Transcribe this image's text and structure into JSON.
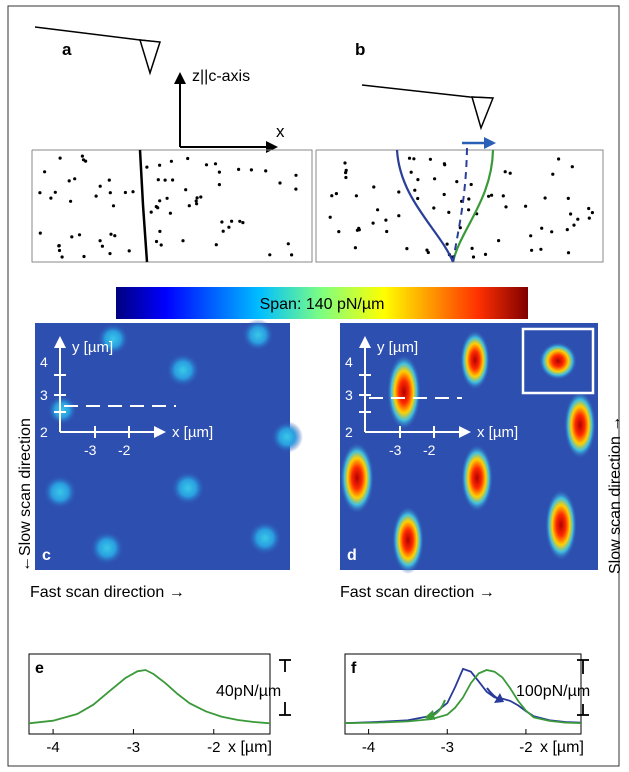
{
  "panels": {
    "a": {
      "label": "a",
      "axis_z": "z||c-axis",
      "axis_x": "x"
    },
    "b": {
      "label": "b"
    },
    "c": {
      "label": "c",
      "ylabel": "y [µm]",
      "xlabel": "x [µm]",
      "yticks": [
        "4",
        "3",
        "2"
      ],
      "xticks": [
        "-3",
        "-2"
      ]
    },
    "d": {
      "label": "d",
      "ylabel": "y [µm]",
      "xlabel": "x [µm]",
      "yticks": [
        "4",
        "3",
        "2"
      ],
      "xticks": [
        "-3",
        "-2"
      ]
    },
    "e": {
      "label": "e",
      "span": "40pN/µm",
      "xlabel": "x [µm]"
    },
    "f": {
      "label": "f",
      "span": "100pN/µm",
      "xlabel": "x [µm]"
    }
  },
  "colorbar": {
    "label": "Span: 140 pN/µm"
  },
  "scan": {
    "slow_left": "←Slow scan direction",
    "slow_right": "Slow scan direction →",
    "fast": "Fast scan direction →"
  },
  "chart_data": [
    {
      "type": "line",
      "panel": "e",
      "xlabel": "x [µm]",
      "xlim": [
        -4.3,
        -1.3
      ],
      "xticks": [
        -4,
        -3,
        -2
      ],
      "series": [
        {
          "color": "#3a9a3a",
          "x": [
            -4.3,
            -4.0,
            -3.7,
            -3.5,
            -3.3,
            -3.1,
            -2.95,
            -2.85,
            -2.75,
            -2.6,
            -2.45,
            -2.3,
            -2.1,
            -1.9,
            -1.7,
            -1.5,
            -1.3
          ],
          "y": [
            2,
            4,
            9,
            16,
            26,
            36,
            41,
            42,
            39,
            32,
            24,
            17,
            11,
            7,
            4.5,
            3,
            2
          ]
        }
      ]
    },
    {
      "type": "line",
      "panel": "f",
      "xlabel": "x [µm]",
      "xlim": [
        -4.3,
        -1.3
      ],
      "xticks": [
        -4,
        -3,
        -2
      ],
      "series": [
        {
          "color": "#2a3a9a",
          "x": [
            -4.3,
            -3.9,
            -3.5,
            -3.2,
            -3.0,
            -2.9,
            -2.8,
            -2.7,
            -2.6,
            -2.5,
            -2.4,
            -2.3,
            -2.2,
            -2.1,
            -2.0,
            -1.9,
            -1.7,
            -1.5,
            -1.3
          ],
          "y": [
            5,
            7,
            10,
            18,
            40,
            68,
            100,
            95,
            78,
            60,
            50,
            48,
            44,
            36,
            26,
            17,
            10,
            7,
            6
          ]
        },
        {
          "color": "#3a9a3a",
          "x": [
            -4.3,
            -3.9,
            -3.5,
            -3.2,
            -3.0,
            -2.9,
            -2.8,
            -2.7,
            -2.6,
            -2.5,
            -2.4,
            -2.3,
            -2.2,
            -2.1,
            -2.0,
            -1.9,
            -1.7,
            -1.5,
            -1.3
          ],
          "y": [
            5,
            6,
            8,
            12,
            20,
            32,
            50,
            75,
            92,
            98,
            95,
            85,
            66,
            44,
            27,
            15,
            9,
            6,
            5
          ]
        }
      ]
    }
  ]
}
